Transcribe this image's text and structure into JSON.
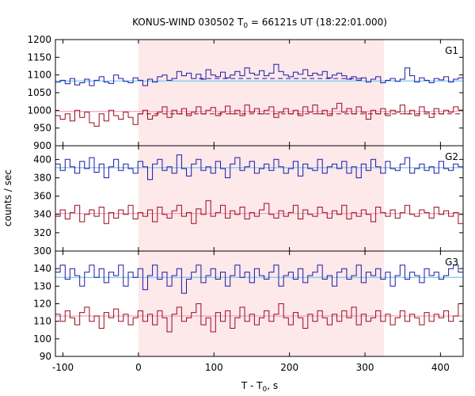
{
  "chart_data": {
    "type": "line",
    "title_main": "KONUS-WIND 030502 T",
    "title_sub": "0",
    "title_rest": " = 66121s UT (18:22:01.000)",
    "xlabel_main": "T - T",
    "xlabel_sub": "0",
    "xlabel_rest": ", s",
    "ylabel": "counts / sec",
    "xlim": [
      -110,
      430
    ],
    "xticks": [
      "-100",
      "0",
      "100",
      "200",
      "300",
      "400"
    ],
    "shaded_interval": [
      0,
      325
    ],
    "colors": {
      "upper_series": "#1a1aa8",
      "lower_series": "#9b0a1a",
      "upper_fit": "#7ec8e8",
      "lower_fit": "#f0a0c0",
      "shade": "#fde8ea"
    },
    "grid": false,
    "panels": [
      {
        "label": "G1",
        "ylim": [
          900,
          1200
        ],
        "yticks": [
          "900",
          "950",
          "1000",
          "1050",
          "1100",
          "1150",
          "1200"
        ],
        "series": [
          {
            "role": "upper",
            "mean": 1085,
            "sigma": 10,
            "values": [
              1080,
              1085,
              1075,
              1090,
              1072,
              1078,
              1088,
              1070,
              1085,
              1095,
              1080,
              1076,
              1100,
              1090,
              1082,
              1078,
              1092,
              1085,
              1070,
              1088,
              1080,
              1095,
              1100,
              1085,
              1090,
              1110,
              1098,
              1105,
              1090,
              1102,
              1088,
              1115,
              1100,
              1095,
              1108,
              1092,
              1100,
              1110,
              1098,
              1120,
              1105,
              1100,
              1112,
              1098,
              1105,
              1130,
              1110,
              1100,
              1095,
              1108,
              1102,
              1115,
              1098,
              1105,
              1100,
              1110,
              1092,
              1100,
              1105,
              1098,
              1088,
              1095,
              1085,
              1092,
              1080,
              1088,
              1095,
              1078,
              1085,
              1090,
              1082,
              1088,
              1120,
              1098,
              1080,
              1092,
              1085,
              1078,
              1090,
              1086,
              1095,
              1080,
              1088,
              1092
            ]
          },
          {
            "role": "lower",
            "mean": 1000,
            "sigma": 12,
            "values": [
              985,
              975,
              990,
              970,
              1000,
              980,
              995,
              965,
              955,
              990,
              970,
              1000,
              985,
              975,
              995,
              980,
              960,
              990,
              1000,
              975,
              985,
              995,
              1010,
              980,
              1000,
              990,
              1005,
              985,
              995,
              1010,
              990,
              1000,
              1008,
              985,
              995,
              1012,
              990,
              1000,
              985,
              1015,
              995,
              1005,
              990,
              1000,
              1010,
              980,
              995,
              1005,
              990,
              1000,
              985,
              1010,
              995,
              1015,
              990,
              1000,
              985,
              1005,
              1020,
              995,
              1005,
              990,
              1010,
              995,
              975,
              1000,
              990,
              1005,
              985,
              1000,
              995,
              1015,
              990,
              1000,
              985,
              1010,
              995,
              980,
              1005,
              990,
              1000,
              995,
              1010,
              1000
            ]
          }
        ],
        "fits": [
          {
            "role": "upper",
            "x_from": -110,
            "x_to": 430,
            "value": 1083
          },
          {
            "role": "lower",
            "x_from": -110,
            "x_to": 430,
            "value": 997
          }
        ],
        "dashed": [
          {
            "role": "upper",
            "x_from": 80,
            "x_to": 300,
            "value": 1090
          },
          {
            "role": "lower",
            "x_from": 0,
            "x_to": 430,
            "value": 990
          }
        ]
      },
      {
        "label": "G2",
        "ylim": [
          300,
          415
        ],
        "yticks": [
          "300",
          "320",
          "340",
          "360",
          "380",
          "400"
        ],
        "series": [
          {
            "role": "upper",
            "mean": 392,
            "sigma": 6,
            "values": [
              395,
              388,
              400,
              392,
              385,
              398,
              390,
              402,
              386,
              395,
              380,
              392,
              400,
              388,
              395,
              390,
              385,
              398,
              392,
              378,
              395,
              400,
              388,
              392,
              385,
              405,
              390,
              382,
              395,
              400,
              388,
              392,
              385,
              398,
              390,
              380,
              395,
              402,
              388,
              392,
              398,
              385,
              390,
              395,
              388,
              400,
              392,
              385,
              390,
              398,
              382,
              395,
              390,
              388,
              400,
              385,
              392,
              395,
              390,
              398,
              385,
              392,
              380,
              395,
              388,
              400,
              392,
              385,
              398,
              390,
              388,
              395,
              402,
              385,
              390,
              395,
              388,
              392,
              385,
              398,
              390,
              388,
              395,
              392
            ]
          },
          {
            "role": "lower",
            "mean": 342,
            "sigma": 6,
            "values": [
              338,
              345,
              335,
              342,
              350,
              332,
              340,
              345,
              338,
              348,
              330,
              342,
              336,
              345,
              340,
              350,
              335,
              342,
              338,
              345,
              332,
              348,
              340,
              336,
              344,
              350,
              338,
              342,
              330,
              346,
              340,
              355,
              338,
              342,
              350,
              336,
              344,
              340,
              348,
              335,
              342,
              338,
              345,
              352,
              340,
              336,
              344,
              338,
              342,
              350,
              335,
              345,
              340,
              338,
              348,
              342,
              336,
              344,
              340,
              350,
              335,
              342,
              338,
              345,
              340,
              332,
              348,
              342,
              338,
              345,
              336,
              342,
              350,
              340,
              338,
              345,
              342,
              336,
              348,
              340,
              344,
              338,
              342,
              330
            ]
          }
        ],
        "fits": [
          {
            "role": "upper",
            "x_from": -110,
            "x_to": 430,
            "value": 391
          },
          {
            "role": "lower",
            "x_from": -110,
            "x_to": 430,
            "value": 341
          }
        ],
        "dashed": []
      },
      {
        "label": "G3",
        "ylim": [
          90,
          150
        ],
        "yticks": [
          "90",
          "100",
          "110",
          "120",
          "130",
          "140"
        ],
        "series": [
          {
            "role": "upper",
            "mean": 136,
            "sigma": 4,
            "values": [
              138,
              142,
              134,
              140,
              136,
              130,
              138,
              142,
              135,
              140,
              132,
              138,
              136,
              142,
              130,
              138,
              135,
              140,
              128,
              136,
              142,
              134,
              138,
              130,
              136,
              140,
              126,
              134,
              138,
              142,
              132,
              136,
              140,
              134,
              138,
              130,
              136,
              142,
              135,
              138,
              132,
              140,
              136,
              134,
              138,
              142,
              130,
              136,
              138,
              134,
              140,
              132,
              136,
              138,
              142,
              134,
              136,
              130,
              138,
              140,
              134,
              136,
              142,
              132,
              138,
              136,
              140,
              134,
              138,
              130,
              136,
              142,
              134,
              138,
              136,
              132,
              140,
              136,
              138,
              134,
              136,
              140,
              142,
              138
            ]
          },
          {
            "role": "lower",
            "mean": 113,
            "sigma": 4,
            "values": [
              114,
              110,
              116,
              112,
              108,
              115,
              118,
              110,
              113,
              106,
              115,
              112,
              117,
              110,
              114,
              108,
              112,
              116,
              110,
              114,
              108,
              116,
              112,
              104,
              114,
              118,
              110,
              112,
              115,
              120,
              108,
              112,
              104,
              115,
              110,
              116,
              106,
              112,
              118,
              110,
              114,
              108,
              112,
              116,
              110,
              114,
              120,
              112,
              108,
              115,
              112,
              106,
              114,
              110,
              116,
              112,
              108,
              114,
              110,
              116,
              112,
              118,
              108,
              114,
              110,
              112,
              116,
              110,
              114,
              108,
              112,
              116,
              110,
              114,
              112,
              108,
              115,
              110,
              114,
              112,
              116,
              110,
              113,
              120
            ]
          }
        ],
        "fits": [
          {
            "role": "upper",
            "x_from": -110,
            "x_to": 430,
            "value": 135
          },
          {
            "role": "lower",
            "x_from": -110,
            "x_to": 430,
            "value": 113
          }
        ],
        "dashed": []
      }
    ]
  }
}
